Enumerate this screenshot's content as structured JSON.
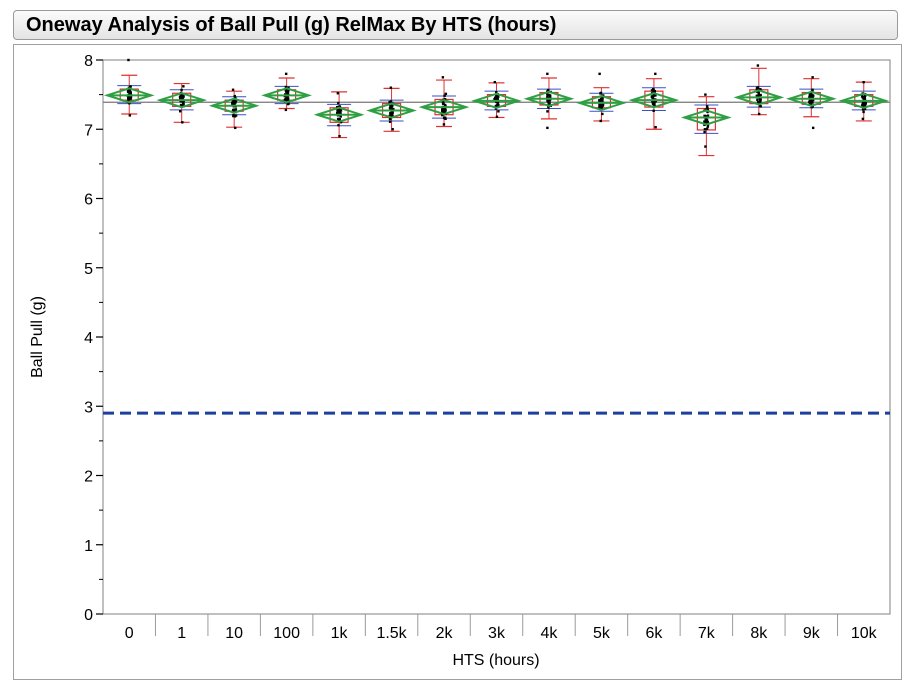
{
  "title": "Oneway Analysis of Ball Pull (g) RelMax By HTS (hours)",
  "chart_data": {
    "type": "oneway",
    "xlabel": "HTS (hours)",
    "ylabel": "Ball Pull (g)",
    "ylim": [
      0,
      8
    ],
    "y_ticks": [
      "0",
      "1",
      "2",
      "3",
      "4",
      "5",
      "6",
      "7",
      "8"
    ],
    "categories": [
      "0",
      "1",
      "10",
      "100",
      "1k",
      "1.5k",
      "2k",
      "3k",
      "4k",
      "5k",
      "6k",
      "7k",
      "8k",
      "9k",
      "10k"
    ],
    "means": [
      7.49,
      7.42,
      7.34,
      7.49,
      7.21,
      7.27,
      7.32,
      7.41,
      7.44,
      7.38,
      7.42,
      7.17,
      7.46,
      7.44,
      7.41
    ],
    "q1": [
      7.42,
      7.33,
      7.26,
      7.42,
      7.1,
      7.17,
      7.21,
      7.33,
      7.35,
      7.31,
      7.32,
      6.99,
      7.37,
      7.36,
      7.33
    ],
    "q3": [
      7.58,
      7.52,
      7.42,
      7.57,
      7.31,
      7.37,
      7.43,
      7.5,
      7.53,
      7.47,
      7.55,
      7.3,
      7.57,
      7.53,
      7.5
    ],
    "whisker_low": [
      7.22,
      7.1,
      7.03,
      7.3,
      6.88,
      6.97,
      7.04,
      7.17,
      7.15,
      7.12,
      7.0,
      6.62,
      7.21,
      7.18,
      7.12
    ],
    "whisker_high": [
      7.78,
      7.66,
      7.55,
      7.74,
      7.54,
      7.59,
      7.71,
      7.67,
      7.74,
      7.6,
      7.73,
      7.47,
      7.88,
      7.73,
      7.68
    ],
    "data_min": [
      7.2,
      7.1,
      7.02,
      7.28,
      6.9,
      7.0,
      7.07,
      7.18,
      7.02,
      7.12,
      7.03,
      6.75,
      7.22,
      7.02,
      7.15
    ],
    "data_max": [
      8.0,
      7.62,
      7.57,
      7.8,
      7.52,
      7.6,
      7.75,
      7.68,
      7.8,
      7.8,
      7.8,
      7.5,
      7.92,
      7.75,
      7.68
    ],
    "grand_mean": 7.39,
    "reference_line": 2.9,
    "colors": {
      "diamond": "#2ea043",
      "box": "#e03030",
      "whisker_tick": "#3a50c8",
      "points": "#000000",
      "reference": "#1c3fa0",
      "grand_mean": "#777777"
    }
  }
}
